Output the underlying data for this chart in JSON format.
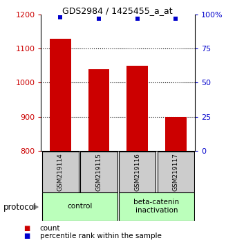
{
  "title": "GDS2984 / 1425455_a_at",
  "samples": [
    "GSM219114",
    "GSM219115",
    "GSM219116",
    "GSM219117"
  ],
  "bar_values": [
    1130,
    1040,
    1050,
    900
  ],
  "percentile_values": [
    98,
    97,
    97,
    97
  ],
  "bar_color": "#cc0000",
  "dot_color": "#0000cc",
  "ylim_left": [
    800,
    1200
  ],
  "ylim_right": [
    0,
    100
  ],
  "yticks_left": [
    800,
    900,
    1000,
    1100,
    1200
  ],
  "yticks_right": [
    0,
    25,
    50,
    75,
    100
  ],
  "ytick_labels_right": [
    "0",
    "25",
    "50",
    "75",
    "100%"
  ],
  "groups": [
    {
      "label": "control",
      "samples": [
        0,
        1
      ],
      "color": "#bbffbb"
    },
    {
      "label": "beta-catenin\ninactivation",
      "samples": [
        2,
        3
      ],
      "color": "#bbffbb"
    }
  ],
  "protocol_label": "protocol",
  "legend_items": [
    {
      "color": "#cc0000",
      "label": "count"
    },
    {
      "color": "#0000cc",
      "label": "percentile rank within the sample"
    }
  ],
  "background_color": "#ffffff",
  "sample_box_color": "#cccccc",
  "bar_width": 0.55,
  "title_fontsize": 9,
  "axis_fontsize": 8,
  "label_fontsize": 7.5,
  "legend_fontsize": 7.5
}
